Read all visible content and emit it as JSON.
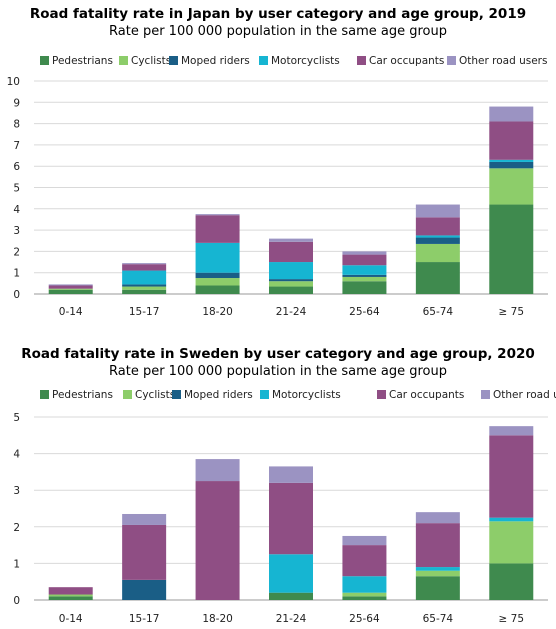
{
  "colors": {
    "Pedestrians": "#3f8a4e",
    "Cyclists": "#8dcd6a",
    "Moped riders": "#1a5e86",
    "Motorcyclists": "#16b5d2",
    "Car occupants": "#8f4e84",
    "Other road users": "#9b93c2",
    "grid": "#d9d9d9",
    "axis": "#999999"
  },
  "chart_data": [
    {
      "type": "bar",
      "stacked": true,
      "title": "Road fatality rate in Japan by user category and age group, 2019",
      "subtitle": "Rate per 100 000 population in the same age group",
      "legend_position": "top",
      "grid": true,
      "categories": [
        "0-14",
        "15-17",
        "18-20",
        "21-24",
        "25-64",
        "65-74",
        "≥ 75"
      ],
      "yticks": [
        "0",
        "1",
        "2",
        "3",
        "4",
        "5",
        "6",
        "7",
        "8",
        "9",
        "10"
      ],
      "ylim": [
        0,
        10
      ],
      "series": [
        {
          "name": "Pedestrians",
          "values": [
            0.2,
            0.2,
            0.4,
            0.35,
            0.6,
            1.5,
            4.2
          ]
        },
        {
          "name": "Cyclists",
          "values": [
            0.05,
            0.15,
            0.35,
            0.25,
            0.2,
            0.85,
            1.7
          ]
        },
        {
          "name": "Moped riders",
          "values": [
            0.0,
            0.1,
            0.25,
            0.1,
            0.1,
            0.3,
            0.3
          ]
        },
        {
          "name": "Motorcyclists",
          "values": [
            0.0,
            0.65,
            1.4,
            0.8,
            0.45,
            0.1,
            0.1
          ]
        },
        {
          "name": "Car occupants",
          "values": [
            0.15,
            0.3,
            1.3,
            0.95,
            0.5,
            0.85,
            1.8
          ]
        },
        {
          "name": "Other road users",
          "values": [
            0.05,
            0.05,
            0.05,
            0.15,
            0.15,
            0.6,
            0.7
          ]
        }
      ]
    },
    {
      "type": "bar",
      "stacked": true,
      "title": "Road fatality rate in Sweden by user category and age group, 2020",
      "subtitle": "Rate per 100 000 population in the same age group",
      "legend_position": "top",
      "grid": true,
      "categories": [
        "0-14",
        "15-17",
        "18-20",
        "21-24",
        "25-64",
        "65-74",
        "≥ 75"
      ],
      "yticks": [
        "0",
        "1",
        "2",
        "3",
        "4",
        "5"
      ],
      "ylim": [
        0,
        5
      ],
      "series": [
        {
          "name": "Pedestrians",
          "values": [
            0.1,
            0.0,
            0.0,
            0.2,
            0.1,
            0.65,
            1.0
          ]
        },
        {
          "name": "Cyclists",
          "values": [
            0.05,
            0.0,
            0.0,
            0.0,
            0.1,
            0.15,
            1.15
          ]
        },
        {
          "name": "Moped riders",
          "values": [
            0.0,
            0.55,
            0.0,
            0.0,
            0.0,
            0.0,
            0.0
          ]
        },
        {
          "name": "Motorcyclists",
          "values": [
            0.0,
            0.0,
            0.0,
            1.05,
            0.45,
            0.1,
            0.1
          ]
        },
        {
          "name": "Car occupants",
          "values": [
            0.2,
            1.5,
            3.25,
            1.95,
            0.85,
            1.2,
            2.25
          ]
        },
        {
          "name": "Other road users",
          "values": [
            0.0,
            0.3,
            0.6,
            0.45,
            0.25,
            0.3,
            0.25
          ]
        }
      ]
    }
  ]
}
